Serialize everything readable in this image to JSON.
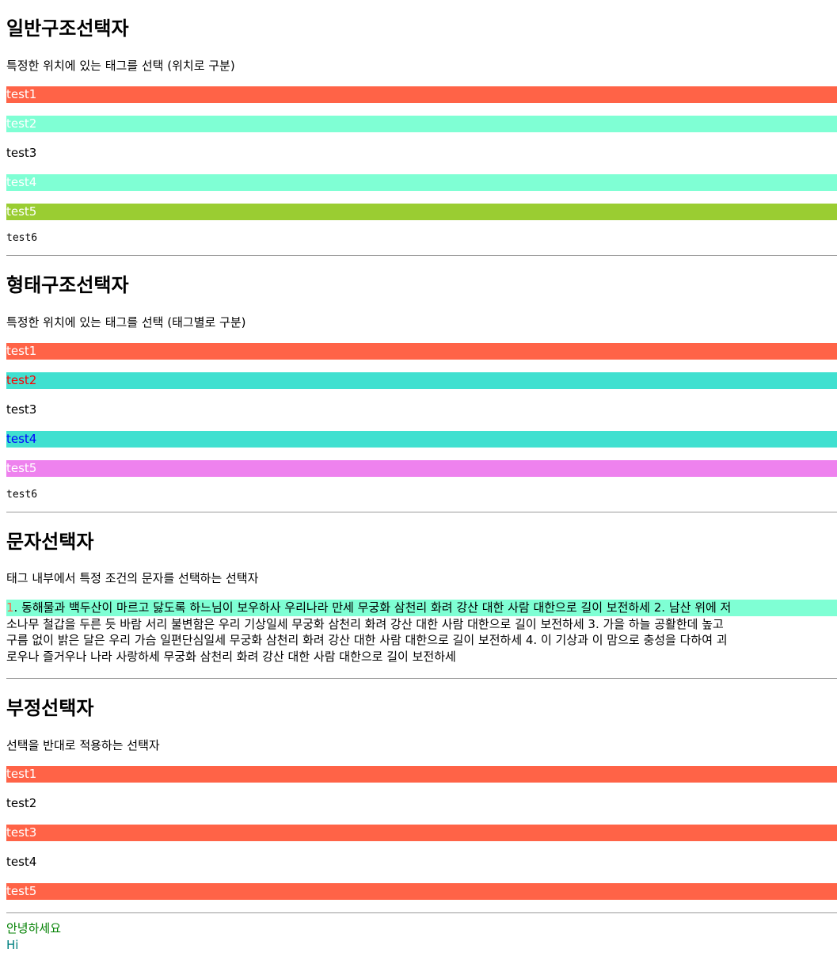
{
  "colors": {
    "tomato": "#ff6347",
    "aquamarine": "#7fffd4",
    "yellowgreen": "#9acd32",
    "turquoise": "#40e0d0",
    "violet": "#ee82ee",
    "white": "#ffffff",
    "red": "#ff0000",
    "blue": "#0000ff",
    "green": "#008000",
    "teal": "#008080"
  },
  "section1": {
    "title": "일반구조선택자",
    "description": "특정한 위치에 있는 태그를 선택 (위치로 구분)",
    "items": [
      "test1",
      "test2",
      "test3",
      "test4",
      "test5",
      "test6"
    ]
  },
  "section2": {
    "title": "형태구조선택자",
    "description": "특정한 위치에 있는 태그를 선택 (태그별로 구분)",
    "items": [
      "test1",
      "test2",
      "test3",
      "test4",
      "test5",
      "test6"
    ]
  },
  "section3": {
    "title": "문자선택자",
    "description": "태그 내부에서 특정 조건의 문자를 선택하는 선택자",
    "first_letter": "1",
    "line1": ". 동해물과 백두산이 마르고 닳도록 하느님이 보우하사 우리나라 만세 무궁화 삼천리 화려 강산 대한 사람 대한으로 길이 보전하세 2. 남산 위에 저",
    "line2": "소나무 철갑을 두른 듯 바람 서리 불변함은 우리 기상일세 무궁화 삼천리 화려 강산 대한 사람 대한으로 길이 보전하세 3. 가을 하늘 공활한데 높고",
    "line3": "구름 없이 밝은 달은 우리 가슴 일편단심일세 무궁화 삼천리 화려 강산 대한 사람 대한으로 길이 보전하세 4. 이 기상과 이 맘으로 충성을 다하여 괴",
    "line4": "로우나 즐거우나 나라 사랑하세 무궁화 삼천리 화려 강산 대한 사람 대한으로 길이 보전하세"
  },
  "section4": {
    "title": "부정선택자",
    "description": "선택을 반대로 적용하는 선택자",
    "items": [
      "test1",
      "test2",
      "test3",
      "test4",
      "test5"
    ]
  },
  "footer": {
    "greeting_ko": "안녕하세요",
    "greeting_en": "Hi"
  }
}
